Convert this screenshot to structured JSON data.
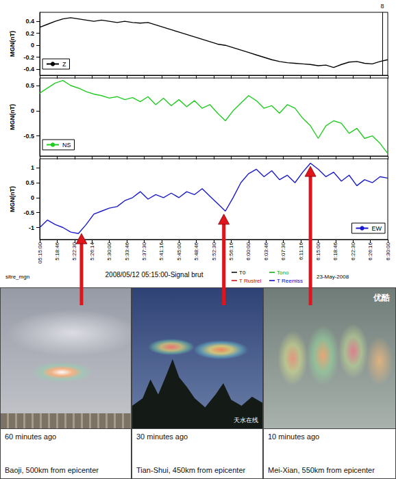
{
  "chart_data": [
    {
      "type": "line",
      "y_label": "MGN(nT)",
      "x": [
        18900,
        19000,
        19100,
        19200,
        19300,
        19400,
        19500,
        19600,
        19700,
        19800,
        19900,
        20000,
        20100,
        20200,
        20300,
        20400,
        20500,
        20600,
        20700,
        20800,
        20900,
        21000,
        21100,
        21200,
        21300,
        21400,
        21500,
        21600,
        21700,
        21800,
        21900,
        22000,
        22100,
        22200,
        22300,
        22400,
        22500,
        22600,
        22700,
        22800,
        22900,
        23000,
        23100,
        23200,
        23300,
        23400
      ],
      "series": [
        {
          "name": "Z",
          "color": "#000000",
          "values": [
            0.3,
            0.35,
            0.4,
            0.44,
            0.46,
            0.44,
            0.42,
            0.4,
            0.42,
            0.4,
            0.38,
            0.4,
            0.38,
            0.37,
            0.38,
            0.34,
            0.3,
            0.26,
            0.22,
            0.18,
            0.14,
            0.1,
            0.06,
            0.02,
            0.0,
            -0.04,
            -0.08,
            -0.12,
            -0.16,
            -0.2,
            -0.24,
            -0.27,
            -0.29,
            -0.3,
            -0.31,
            -0.32,
            -0.34,
            -0.33,
            -0.37,
            -0.32,
            -0.28,
            -0.27,
            -0.3,
            -0.31,
            -0.27,
            -0.24
          ]
        }
      ],
      "xlim": [
        18900,
        23400
      ],
      "ylim": [
        -0.5,
        0.55
      ],
      "yticks": [
        -0.4,
        -0.2,
        0,
        0.2,
        0.4
      ],
      "xticks": [
        18900,
        19126,
        19350,
        19574,
        19800,
        20026,
        20250,
        20476,
        20700,
        20926,
        21150,
        21376,
        21600,
        21826,
        22050,
        22276,
        22500,
        22726,
        22950,
        23176,
        23400
      ],
      "tick_labels": "y",
      "legend": "lower left",
      "grid": false,
      "vline": {
        "x": 23330,
        "label": "8"
      }
    },
    {
      "type": "line",
      "y_label": "MGN(nT)",
      "x": [
        18900,
        19000,
        19100,
        19200,
        19300,
        19400,
        19500,
        19600,
        19700,
        19800,
        19900,
        20000,
        20100,
        20200,
        20300,
        20400,
        20500,
        20600,
        20700,
        20800,
        20900,
        21000,
        21100,
        21200,
        21300,
        21400,
        21500,
        21600,
        21700,
        21800,
        21900,
        22000,
        22100,
        22200,
        22300,
        22400,
        22500,
        22600,
        22700,
        22800,
        22900,
        23000,
        23100,
        23200,
        23300,
        23400
      ],
      "series": [
        {
          "name": "NS",
          "color": "#22cc22",
          "values": [
            0.35,
            0.45,
            0.55,
            0.6,
            0.5,
            0.45,
            0.38,
            0.33,
            0.3,
            0.25,
            0.28,
            0.22,
            0.26,
            0.18,
            0.28,
            0.12,
            0.25,
            0.1,
            0.22,
            0.08,
            0.2,
            0.05,
            0.12,
            -0.05,
            -0.2,
            0.0,
            0.15,
            0.3,
            0.2,
            0.05,
            0.1,
            -0.05,
            0.12,
            0.05,
            -0.15,
            -0.3,
            -0.55,
            -0.3,
            -0.2,
            -0.25,
            -0.45,
            -0.35,
            -0.55,
            -0.5,
            -0.65,
            -0.85
          ]
        }
      ],
      "xlim": [
        18900,
        23400
      ],
      "ylim": [
        -0.9,
        0.65
      ],
      "yticks": [
        -0.5,
        0,
        0.5
      ],
      "xticks": [
        18900,
        19126,
        19350,
        19574,
        19800,
        20026,
        20250,
        20476,
        20700,
        20926,
        21150,
        21376,
        21600,
        21826,
        22050,
        22276,
        22500,
        22726,
        22950,
        23176,
        23400
      ],
      "tick_labels": "y",
      "legend": "lower left",
      "grid": false
    },
    {
      "type": "line",
      "y_label": "MGN(nT)",
      "x_label": "2008/05/12 05:15:00-Signal brut",
      "source": "sitre_mgn",
      "notes": [
        {
          "text": "T0",
          "color": "#000000"
        },
        {
          "text": "Tono",
          "color": "#00aa00"
        },
        {
          "text": "T Rustrel",
          "color": "#cc0000"
        },
        {
          "text": "T Reemiss",
          "color": "#0000cc"
        },
        {
          "text": "23-May-2008"
        }
      ],
      "x": [
        18900,
        19000,
        19100,
        19200,
        19300,
        19400,
        19500,
        19600,
        19700,
        19800,
        19900,
        20000,
        20100,
        20200,
        20300,
        20400,
        20500,
        20600,
        20700,
        20800,
        20900,
        21000,
        21100,
        21200,
        21300,
        21400,
        21500,
        21600,
        21700,
        21800,
        21900,
        22000,
        22100,
        22200,
        22300,
        22400,
        22500,
        22600,
        22700,
        22800,
        22900,
        23000,
        23100,
        23200,
        23300,
        23400
      ],
      "series": [
        {
          "name": "EW",
          "color": "#1a1acc",
          "values": [
            -1.0,
            -0.75,
            -0.9,
            -1.0,
            -1.15,
            -1.2,
            -0.9,
            -0.55,
            -0.45,
            -0.35,
            -0.3,
            -0.1,
            0.0,
            0.2,
            -0.05,
            0.1,
            0.0,
            0.15,
            0.0,
            0.2,
            0.1,
            0.3,
            0.05,
            -0.2,
            -0.45,
            0.0,
            0.5,
            0.8,
            0.95,
            0.7,
            0.9,
            0.6,
            0.75,
            0.5,
            0.85,
            1.15,
            0.95,
            0.7,
            0.85,
            0.55,
            0.75,
            0.4,
            0.6,
            0.5,
            0.7,
            0.65
          ]
        }
      ],
      "xlim": [
        18900,
        23400
      ],
      "ylim": [
        -1.4,
        1.3
      ],
      "yticks": [
        -1,
        -0.5,
        0,
        0.5,
        1
      ],
      "xticks": [
        {
          "value": 18900,
          "label": "05:15:00"
        },
        {
          "value": 19126,
          "label": "5:18:46"
        },
        {
          "value": 19350,
          "label": "5:22:30"
        },
        {
          "value": 19574,
          "label": "5:26:14"
        },
        {
          "value": 19800,
          "label": "5:30:00"
        },
        {
          "value": 20026,
          "label": "5:33:46"
        },
        {
          "value": 20250,
          "label": "5:37:30"
        },
        {
          "value": 20476,
          "label": "5:41:16"
        },
        {
          "value": 20700,
          "label": "5:45:00"
        },
        {
          "value": 20926,
          "label": "5:48:46"
        },
        {
          "value": 21150,
          "label": "5:52:30"
        },
        {
          "value": 21376,
          "label": "5:56:16"
        },
        {
          "value": 21600,
          "label": "6:00:00"
        },
        {
          "value": 21826,
          "label": "6:03:46"
        },
        {
          "value": 22050,
          "label": "6:07:30"
        },
        {
          "value": 22276,
          "label": "6:11:16"
        },
        {
          "value": 22500,
          "label": "6:15:00"
        },
        {
          "value": 22726,
          "label": "6:18:46"
        },
        {
          "value": 22950,
          "label": "6:22:30"
        },
        {
          "value": 23176,
          "label": "6:26:16"
        },
        {
          "value": 23400,
          "label": "6:30:00"
        }
      ],
      "legend": "lower right",
      "grid": false
    }
  ],
  "photos": [
    {
      "time": "60 minutes ago",
      "place": "Baoji, 500km from epicenter",
      "x": 19440,
      "y": -1.2
    },
    {
      "time": "30 minutes ago",
      "place": "Tian-Shui, 450km from epicenter",
      "watermark": "天水在线",
      "x": 21280,
      "y": -0.55
    },
    {
      "time": "10 minutes ago",
      "place": "Mei-Xian, 550km from epicenter",
      "watermark": "优酷",
      "x": 22400,
      "y": 1.05
    }
  ]
}
